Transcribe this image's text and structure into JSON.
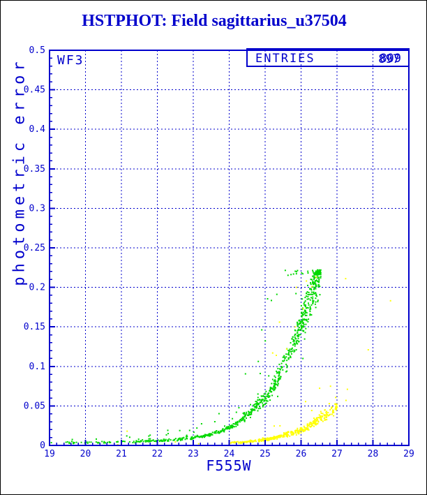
{
  "window": {
    "background": "#ffffff",
    "border_color": "#000000"
  },
  "chart_data": {
    "type": "scatter",
    "title": "HSTPHOT: Field sagittarius_u37504",
    "panel_label": "WF3",
    "xlabel": "F555W",
    "ylabel": "photometric error",
    "xlim": [
      19,
      29
    ],
    "ylim": [
      0,
      0.5
    ],
    "grid": "dashed blue gridlines at every major tick, both axes",
    "legend_position": "entries box, top-right inside plot",
    "axis_color": "#0000cc",
    "title_color": "#0000cc",
    "entries_box": {
      "label": "ENTRIES",
      "values": [
        "809",
        "897"
      ],
      "note": "two counts over-printed at the same position, digits overlap"
    },
    "x_ticks": [
      {
        "v": 19,
        "label": "19"
      },
      {
        "v": 20,
        "label": "20"
      },
      {
        "v": 21,
        "label": "21"
      },
      {
        "v": 22,
        "label": "22"
      },
      {
        "v": 23,
        "label": "23"
      },
      {
        "v": 24,
        "label": "24"
      },
      {
        "v": 25,
        "label": "25"
      },
      {
        "v": 26,
        "label": "26"
      },
      {
        "v": 27,
        "label": "27"
      },
      {
        "v": 28,
        "label": "28"
      },
      {
        "v": 29,
        "label": "29"
      }
    ],
    "y_ticks": [
      {
        "v": 0.0,
        "label": "0"
      },
      {
        "v": 0.05,
        "label": "0.05"
      },
      {
        "v": 0.1,
        "label": "0.1"
      },
      {
        "v": 0.15,
        "label": "0.15"
      },
      {
        "v": 0.2,
        "label": "0.2"
      },
      {
        "v": 0.25,
        "label": "0.25"
      },
      {
        "v": 0.3,
        "label": "0.3"
      },
      {
        "v": 0.35,
        "label": "0.35"
      },
      {
        "v": 0.4,
        "label": "0.4"
      },
      {
        "v": 0.45,
        "label": "0.45"
      },
      {
        "v": 0.5,
        "label": "0.5"
      }
    ],
    "x_minor_step": 0.2,
    "y_minor_step": 0.01,
    "series": [
      {
        "name": "green-error-locus",
        "color": "#00d800",
        "marker_px": 2,
        "max_err": 0.222,
        "trend_anchors": [
          [
            19.4,
            0.0028
          ],
          [
            20,
            0.0035
          ],
          [
            21,
            0.0042
          ],
          [
            22,
            0.0058
          ],
          [
            23,
            0.0095
          ],
          [
            23.5,
            0.014
          ],
          [
            24,
            0.022
          ],
          [
            24.5,
            0.04
          ],
          [
            24.9,
            0.055
          ],
          [
            25.2,
            0.072
          ],
          [
            25.5,
            0.098
          ],
          [
            25.8,
            0.13
          ],
          [
            26.0,
            0.152
          ],
          [
            26.2,
            0.178
          ],
          [
            26.35,
            0.2
          ],
          [
            26.5,
            0.218
          ]
        ],
        "bin_counts": [
          [
            19.4,
            21.0,
            35
          ],
          [
            21.0,
            22.0,
            45
          ],
          [
            22.0,
            23.0,
            70
          ],
          [
            23.0,
            24.0,
            95
          ],
          [
            24.0,
            24.6,
            80
          ],
          [
            24.6,
            25.1,
            90
          ],
          [
            25.1,
            25.6,
            95
          ],
          [
            25.6,
            26.0,
            100
          ],
          [
            26.0,
            26.3,
            110
          ],
          [
            26.3,
            26.55,
            140
          ]
        ],
        "rel_scatter": 0.07,
        "outlier_rate": 0.05,
        "extra_points": [
          [
            19.05,
            0.0035
          ],
          [
            19.5,
            0.0045
          ],
          [
            19.55,
            0.004
          ],
          [
            19.62,
            0.005
          ],
          [
            20.3,
            0.008
          ],
          [
            21.15,
            0.012
          ],
          [
            21.8,
            0.013
          ],
          [
            22.3,
            0.015
          ],
          [
            22.9,
            0.019
          ],
          [
            23.1,
            0.022
          ],
          [
            23.6,
            0.03
          ],
          [
            24.2,
            0.042
          ],
          [
            24.8,
            0.065
          ],
          [
            25.1,
            0.088
          ],
          [
            25.35,
            0.062
          ],
          [
            25.9,
            0.155
          ],
          [
            26.05,
            0.11
          ]
        ]
      },
      {
        "name": "yellow-error-locus",
        "color": "#ffff00",
        "marker_px": 2,
        "max_err": 0.075,
        "trend_anchors": [
          [
            24.0,
            0.0035
          ],
          [
            24.4,
            0.0045
          ],
          [
            24.8,
            0.006
          ],
          [
            25.2,
            0.009
          ],
          [
            25.6,
            0.014
          ],
          [
            26.0,
            0.019
          ],
          [
            26.4,
            0.03
          ],
          [
            26.7,
            0.039
          ],
          [
            27.0,
            0.05
          ]
        ],
        "bin_counts": [
          [
            24.0,
            24.5,
            30
          ],
          [
            24.5,
            25.0,
            55
          ],
          [
            25.0,
            25.5,
            70
          ],
          [
            25.5,
            26.0,
            80
          ],
          [
            26.0,
            26.5,
            85
          ],
          [
            26.5,
            27.0,
            70
          ]
        ],
        "rel_scatter": 0.09,
        "outlier_rate": 0.02,
        "extra_points": [
          [
            20.9,
            0.001
          ],
          [
            21.16,
            0.018
          ],
          [
            22.5,
            0.0044
          ],
          [
            23.15,
            0.002
          ],
          [
            24.05,
            0.003
          ],
          [
            25.21,
            0.117
          ],
          [
            25.31,
            0.114
          ],
          [
            25.4,
            0.156
          ],
          [
            25.6,
            0.122
          ],
          [
            25.84,
            0.15
          ],
          [
            25.87,
            0.2
          ],
          [
            26.06,
            0.173
          ],
          [
            26.15,
            0.208
          ],
          [
            26.3,
            0.201
          ],
          [
            26.42,
            0.213
          ],
          [
            26.95,
            0.052
          ],
          [
            27.0,
            0.048
          ],
          [
            27.24,
            0.211
          ],
          [
            27.25,
            0.057
          ],
          [
            27.29,
            0.071
          ],
          [
            27.87,
            0.121
          ],
          [
            28.49,
            0.183
          ]
        ]
      }
    ]
  }
}
